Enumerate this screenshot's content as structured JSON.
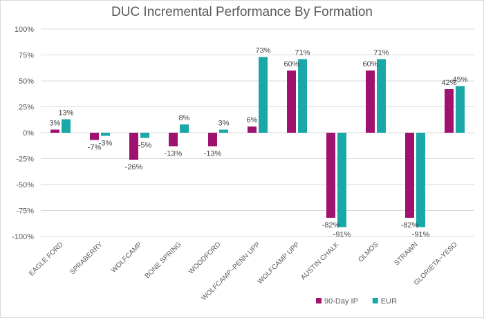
{
  "chart_data": {
    "type": "bar",
    "title": "DUC Incremental Performance By Formation",
    "xlabel": "",
    "ylabel": "",
    "categories": [
      "EAGLE FORD",
      "SPRABERRY",
      "WOLFCAMP",
      "BONE SPRING",
      "WOODFORD",
      "WOLFCAMP~PENN UPP",
      "WOLFCAMP UPP",
      "AUSTIN CHALK",
      "OLMOS",
      "STRAWN",
      "GLORIETA~YESO"
    ],
    "series": [
      {
        "name": "90-Day IP",
        "color": "#a0126f",
        "values": [
          3,
          -7,
          -26,
          -13,
          -13,
          6,
          60,
          -82,
          60,
          -82,
          42
        ]
      },
      {
        "name": "EUR",
        "color": "#1aa7a7",
        "values": [
          13,
          -3,
          -5,
          8,
          3,
          73,
          71,
          -91,
          71,
          -91,
          45
        ]
      }
    ],
    "ylim": [
      -100,
      100
    ],
    "yticks": [
      100,
      75,
      50,
      25,
      0,
      -25,
      -50,
      -75,
      -100
    ],
    "ytick_labels": [
      "100%",
      "75%",
      "50%",
      "25%",
      "0%",
      "-25%",
      "-50%",
      "-75%",
      "-100%"
    ],
    "value_suffix": "%",
    "grid": true,
    "legend_position": "bottom-right"
  }
}
